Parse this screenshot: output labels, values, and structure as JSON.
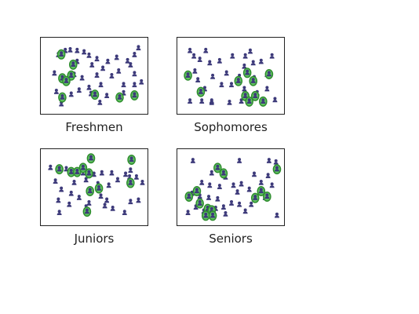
{
  "colors": {
    "student": "#3d3a7a",
    "highlight_ring": "#2e8b2e",
    "highlight_fill": "#5fc25f",
    "border": "#222222"
  },
  "icon_names": [
    "person-icon",
    "highlighted-person-icon"
  ],
  "groups": [
    {
      "label": "Freshmen",
      "people": [
        [
          0.2,
          0.12
        ],
        [
          0.25,
          0.11
        ],
        [
          0.32,
          0.12
        ],
        [
          0.39,
          0.14
        ],
        [
          0.13,
          0.18
        ],
        [
          0.44,
          0.19
        ],
        [
          0.52,
          0.24
        ],
        [
          0.63,
          0.28
        ],
        [
          0.72,
          0.22
        ],
        [
          0.83,
          0.27
        ],
        [
          0.9,
          0.18
        ],
        [
          0.94,
          0.08
        ],
        [
          0.86,
          0.33
        ],
        [
          0.32,
          0.28
        ],
        [
          0.47,
          0.33
        ],
        [
          0.58,
          0.38
        ],
        [
          0.09,
          0.45
        ],
        [
          0.19,
          0.52
        ],
        [
          0.29,
          0.47
        ],
        [
          0.37,
          0.52
        ],
        [
          0.52,
          0.48
        ],
        [
          0.67,
          0.49
        ],
        [
          0.74,
          0.42
        ],
        [
          0.9,
          0.46
        ],
        [
          0.44,
          0.66
        ],
        [
          0.56,
          0.62
        ],
        [
          0.79,
          0.62
        ],
        [
          0.9,
          0.62
        ],
        [
          0.11,
          0.72
        ],
        [
          0.26,
          0.76
        ],
        [
          0.34,
          0.7
        ],
        [
          0.46,
          0.75
        ],
        [
          0.55,
          0.88
        ],
        [
          0.79,
          0.74
        ],
        [
          0.16,
          0.9
        ],
        [
          0.62,
          0.78
        ],
        [
          0.97,
          0.58
        ]
      ],
      "highlighted": [
        [
          0.16,
          0.17
        ],
        [
          0.28,
          0.32
        ],
        [
          0.26,
          0.48
        ],
        [
          0.17,
          0.52
        ],
        [
          0.21,
          0.56
        ],
        [
          0.17,
          0.8
        ],
        [
          0.5,
          0.76
        ],
        [
          0.75,
          0.8
        ],
        [
          0.9,
          0.77
        ]
      ]
    },
    {
      "label": "Sophomores",
      "people": [
        [
          0.08,
          0.12
        ],
        [
          0.24,
          0.12
        ],
        [
          0.12,
          0.2
        ],
        [
          0.18,
          0.25
        ],
        [
          0.28,
          0.3
        ],
        [
          0.38,
          0.27
        ],
        [
          0.51,
          0.2
        ],
        [
          0.64,
          0.2
        ],
        [
          0.69,
          0.13
        ],
        [
          0.72,
          0.3
        ],
        [
          0.8,
          0.28
        ],
        [
          0.91,
          0.2
        ],
        [
          0.13,
          0.42
        ],
        [
          0.31,
          0.5
        ],
        [
          0.45,
          0.45
        ],
        [
          0.58,
          0.5
        ],
        [
          0.73,
          0.52
        ],
        [
          0.86,
          0.47
        ],
        [
          0.16,
          0.55
        ],
        [
          0.23,
          0.68
        ],
        [
          0.4,
          0.62
        ],
        [
          0.5,
          0.62
        ],
        [
          0.63,
          0.68
        ],
        [
          0.76,
          0.74
        ],
        [
          0.86,
          0.68
        ],
        [
          0.08,
          0.86
        ],
        [
          0.2,
          0.86
        ],
        [
          0.3,
          0.88
        ],
        [
          0.48,
          0.88
        ],
        [
          0.6,
          0.86
        ],
        [
          0.94,
          0.84
        ],
        [
          0.3,
          0.86
        ],
        [
          0.63,
          0.35
        ]
      ],
      "highlighted": [
        [
          0.06,
          0.48
        ],
        [
          0.19,
          0.72
        ],
        [
          0.57,
          0.56
        ],
        [
          0.66,
          0.44
        ],
        [
          0.72,
          0.56
        ],
        [
          0.88,
          0.46
        ],
        [
          0.64,
          0.78
        ],
        [
          0.74,
          0.78
        ],
        [
          0.82,
          0.86
        ],
        [
          0.68,
          0.86
        ]
      ]
    },
    {
      "label": "Juniors",
      "people": [
        [
          0.05,
          0.2
        ],
        [
          0.21,
          0.22
        ],
        [
          0.38,
          0.28
        ],
        [
          0.49,
          0.3
        ],
        [
          0.57,
          0.28
        ],
        [
          0.67,
          0.28
        ],
        [
          0.81,
          0.3
        ],
        [
          0.86,
          0.24
        ],
        [
          0.92,
          0.34
        ],
        [
          0.1,
          0.4
        ],
        [
          0.29,
          0.42
        ],
        [
          0.41,
          0.38
        ],
        [
          0.53,
          0.44
        ],
        [
          0.64,
          0.46
        ],
        [
          0.73,
          0.38
        ],
        [
          0.85,
          0.34
        ],
        [
          0.98,
          0.42
        ],
        [
          0.16,
          0.52
        ],
        [
          0.26,
          0.58
        ],
        [
          0.34,
          0.64
        ],
        [
          0.45,
          0.54
        ],
        [
          0.56,
          0.62
        ],
        [
          0.62,
          0.68
        ],
        [
          0.13,
          0.68
        ],
        [
          0.24,
          0.74
        ],
        [
          0.41,
          0.78
        ],
        [
          0.6,
          0.76
        ],
        [
          0.86,
          0.7
        ],
        [
          0.94,
          0.68
        ],
        [
          0.8,
          0.86
        ],
        [
          0.14,
          0.86
        ],
        [
          0.68,
          0.8
        ],
        [
          0.44,
          0.72
        ]
      ],
      "highlighted": [
        [
          0.46,
          0.06
        ],
        [
          0.87,
          0.08
        ],
        [
          0.14,
          0.22
        ],
        [
          0.38,
          0.2
        ],
        [
          0.26,
          0.26
        ],
        [
          0.32,
          0.26
        ],
        [
          0.44,
          0.28
        ],
        [
          0.86,
          0.42
        ],
        [
          0.45,
          0.54
        ],
        [
          0.54,
          0.5
        ],
        [
          0.42,
          0.84
        ]
      ]
    },
    {
      "label": "Seniors",
      "people": [
        [
          0.11,
          0.1
        ],
        [
          0.58,
          0.1
        ],
        [
          0.88,
          0.1
        ],
        [
          0.95,
          0.12
        ],
        [
          0.3,
          0.28
        ],
        [
          0.44,
          0.34
        ],
        [
          0.73,
          0.3
        ],
        [
          0.87,
          0.32
        ],
        [
          0.2,
          0.42
        ],
        [
          0.28,
          0.46
        ],
        [
          0.38,
          0.48
        ],
        [
          0.52,
          0.46
        ],
        [
          0.6,
          0.44
        ],
        [
          0.68,
          0.52
        ],
        [
          0.8,
          0.42
        ],
        [
          0.91,
          0.46
        ],
        [
          0.1,
          0.58
        ],
        [
          0.18,
          0.62
        ],
        [
          0.27,
          0.64
        ],
        [
          0.36,
          0.66
        ],
        [
          0.56,
          0.56
        ],
        [
          0.73,
          0.62
        ],
        [
          0.84,
          0.64
        ],
        [
          0.5,
          0.72
        ],
        [
          0.58,
          0.74
        ],
        [
          0.7,
          0.74
        ],
        [
          0.14,
          0.78
        ],
        [
          0.22,
          0.84
        ],
        [
          0.34,
          0.8
        ],
        [
          0.42,
          0.78
        ],
        [
          0.64,
          0.84
        ],
        [
          0.96,
          0.9
        ],
        [
          0.06,
          0.86
        ],
        [
          0.44,
          0.88
        ]
      ],
      "highlighted": [
        [
          0.36,
          0.2
        ],
        [
          0.42,
          0.28
        ],
        [
          0.96,
          0.22
        ],
        [
          0.15,
          0.54
        ],
        [
          0.07,
          0.62
        ],
        [
          0.18,
          0.72
        ],
        [
          0.26,
          0.8
        ],
        [
          0.3,
          0.82
        ],
        [
          0.8,
          0.54
        ],
        [
          0.74,
          0.64
        ],
        [
          0.86,
          0.62
        ],
        [
          0.24,
          0.9
        ],
        [
          0.31,
          0.9
        ]
      ]
    }
  ]
}
